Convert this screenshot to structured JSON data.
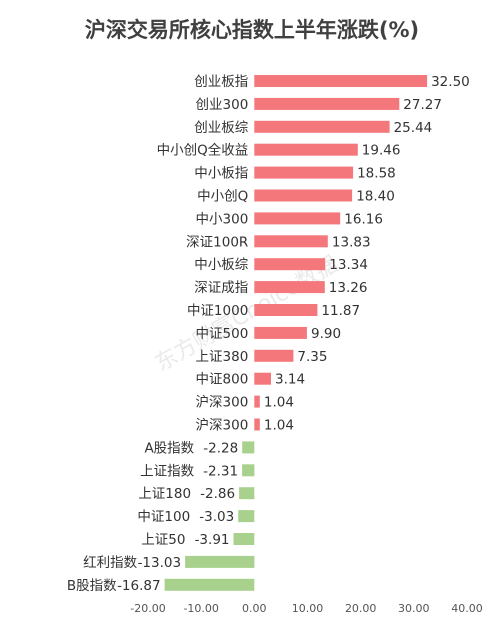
{
  "chart_data": {
    "type": "bar",
    "orientation": "horizontal",
    "title": "沪深交易所核心指数上半年涨跌(%)",
    "categories": [
      "创业板指",
      "创业300",
      "创业板综",
      "中小创Q全收益",
      "中小板指",
      "中小创Q",
      "中小300",
      "深证100R",
      "中小板综",
      "深证成指",
      "中证1000",
      "中证500",
      "上证380",
      "中证800",
      "沪深300",
      "沪深300",
      "A股指数",
      "上证指数",
      "上证180",
      "中证100",
      "上证50",
      "红利指数",
      "B股指数"
    ],
    "values": [
      32.5,
      27.27,
      25.44,
      19.46,
      18.58,
      18.4,
      16.16,
      13.83,
      13.34,
      13.26,
      11.87,
      9.9,
      7.35,
      3.14,
      1.04,
      1.04,
      -2.28,
      -2.31,
      -2.86,
      -3.03,
      -3.91,
      -13.03,
      -16.87
    ],
    "value_labels": [
      "32.50",
      "27.27",
      "25.44",
      "19.46",
      "18.58",
      "18.40",
      "16.16",
      "13.83",
      "13.34",
      "13.26",
      "11.87",
      "9.90",
      "7.35",
      "3.14",
      "1.04",
      "1.04",
      "-2.28",
      "-2.31",
      "-2.86",
      "-3.03",
      "-3.91",
      "-13.03",
      "-16.87"
    ],
    "xlim": [
      -20,
      40
    ],
    "x_ticks": [
      "-20.00",
      "-10.00",
      "0.00",
      "10.00",
      "20.00",
      "30.00",
      "40.00"
    ],
    "x_tick_values": [
      -20,
      -10,
      0,
      10,
      20,
      30,
      40
    ],
    "grid": false,
    "legend": "none",
    "colors": {
      "positive": "#f4777b",
      "negative": "#a9d18e"
    },
    "watermark": "东方财富Choice数据"
  }
}
